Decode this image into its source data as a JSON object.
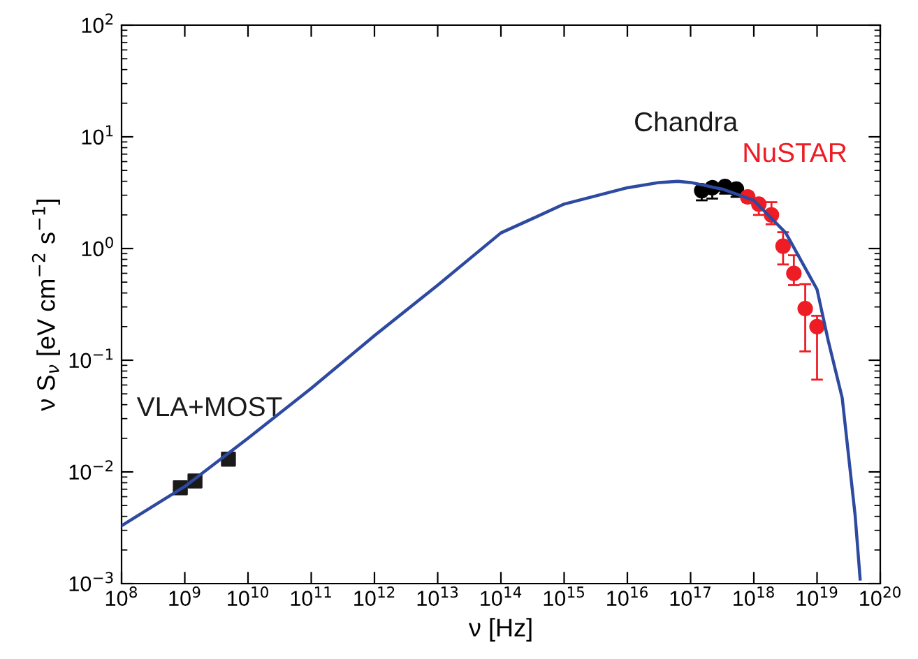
{
  "chart_data": {
    "type": "line",
    "log": "xy",
    "xlabel": "ν [Hz]",
    "ylabel": "ν S$_{ν}$ [eV cm$^{−2}$ s$^{−1}$]",
    "xlim": [
      100000000.0,
      1e+20
    ],
    "ylim": [
      0.001,
      100
    ],
    "xticks": [
      {
        "value": 100000000.0,
        "label": "10$^{8}$"
      },
      {
        "value": 1000000000.0,
        "label": "10$^{9}$"
      },
      {
        "value": 10000000000.0,
        "label": "10$^{10}$"
      },
      {
        "value": 100000000000.0,
        "label": "10$^{11}$"
      },
      {
        "value": 1000000000000.0,
        "label": "10$^{12}$"
      },
      {
        "value": 10000000000000.0,
        "label": "10$^{13}$"
      },
      {
        "value": 100000000000000.0,
        "label": "10$^{14}$"
      },
      {
        "value": 1000000000000000.0,
        "label": "10$^{15}$"
      },
      {
        "value": 1e+16,
        "label": "10$^{16}$"
      },
      {
        "value": 1e+17,
        "label": "10$^{17}$"
      },
      {
        "value": 1e+18,
        "label": "10$^{18}$"
      },
      {
        "value": 1e+19,
        "label": "10$^{19}$"
      },
      {
        "value": 1e+20,
        "label": "10$^{20}$"
      }
    ],
    "yticks": [
      {
        "value": 0.001,
        "label": "10$^{−3}$"
      },
      {
        "value": 0.01,
        "label": "10$^{−2}$"
      },
      {
        "value": 0.1,
        "label": "10$^{−1}$"
      },
      {
        "value": 1,
        "label": "10$^{0}$"
      },
      {
        "value": 10,
        "label": "10$^{1}$"
      },
      {
        "value": 100,
        "label": "10$^{2}$"
      }
    ],
    "grid": false,
    "legend": false,
    "series": [
      {
        "color": "#2e4aa0",
        "line_style": "solid",
        "marker": "none",
        "x": [
          100000000.0,
          1000000000.0,
          10000000000.0,
          100000000000.0,
          1000000000000.0,
          10000000000000.0,
          100000000000000.0,
          320000000000000.0,
          1000000000000000.0,
          1e+16,
          3.2e+16,
          6.3e+16,
          1e+17,
          3.2e+17,
          1e+18,
          3.2e+18,
          1e+19,
          1.5e+19,
          2.5e+19,
          4e+19,
          4.8e+19
        ],
        "values": [
          0.0033,
          0.0074,
          0.02,
          0.056,
          0.166,
          0.47,
          1.38,
          1.86,
          2.5,
          3.5,
          3.9,
          4.0,
          3.9,
          3.4,
          2.7,
          1.38,
          0.43,
          0.15,
          0.046,
          0.0041,
          0.0011
        ]
      },
      {
        "type": "scatter",
        "color": "#1a1a1a",
        "marker": "square",
        "x": [
          850000000.0,
          1450000000.0,
          4900000000.0
        ],
        "values": [
          0.0072,
          0.0083,
          0.013
        ]
      },
      {
        "type": "scatter",
        "color": "#000000",
        "marker": "circle",
        "x": [
          1.5e+17,
          2.2e+17,
          3.5e+17,
          5.3e+17
        ],
        "values": [
          3.3,
          3.5,
          3.6,
          3.4
        ],
        "errors": [
          [
            2.7,
            3.5
          ],
          [
            2.8,
            3.7
          ],
          [
            3.1,
            3.8
          ],
          [
            2.9,
            3.6
          ]
        ]
      },
      {
        "type": "scatter",
        "color": "#ee1c25",
        "marker": "circle",
        "x": [
          8e+17,
          1.2e+18,
          1.9e+18,
          2.9e+18,
          4.3e+18,
          6.5e+18,
          1e+19
        ],
        "values": [
          2.9,
          2.5,
          2.0,
          1.05,
          0.6,
          0.29,
          0.2
        ],
        "errors": [
          [
            2.6,
            3.2
          ],
          [
            2.0,
            2.6
          ],
          [
            1.65,
            2.6
          ],
          [
            0.72,
            1.4
          ],
          [
            0.47,
            0.87
          ],
          [
            0.12,
            0.48
          ],
          [
            0.067,
            0.25
          ]
        ]
      }
    ],
    "annotations": [
      "VLA+MOST",
      "Chandra",
      "NuSTAR"
    ]
  }
}
